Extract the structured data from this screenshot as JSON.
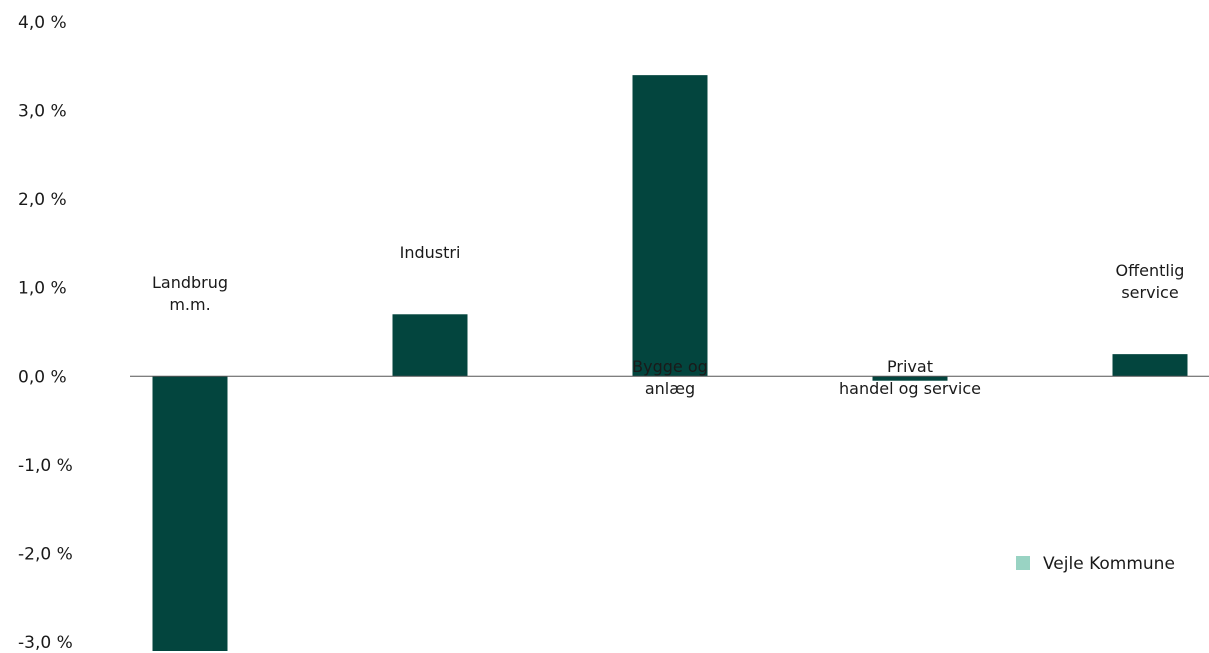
{
  "chart_data": {
    "type": "bar",
    "categories": [
      "Landbrug m.m.",
      "Industri",
      "Bygge og anlæg",
      "Privat handel og service",
      "Offentlig service"
    ],
    "category_label_lines": [
      [
        "Landbrug",
        "m.m."
      ],
      [
        "Industri"
      ],
      [
        "Bygge og",
        "anlæg"
      ],
      [
        "Privat",
        "handel og service"
      ],
      [
        "Offentlig",
        "service"
      ]
    ],
    "series": [
      {
        "name": "Vejle Kommune",
        "values": [
          -3.3,
          0.7,
          3.4,
          -0.05,
          0.25
        ]
      }
    ],
    "ylim": [
      -3.0,
      4.0
    ],
    "y_ticks": [
      4.0,
      3.0,
      2.0,
      1.0,
      0.0,
      -1.0,
      -2.0,
      -3.0
    ],
    "y_tick_labels": [
      "4,0 %",
      "3,0 %",
      "2,0 %",
      "1,0 %",
      "0,0 %",
      "-1,0 %",
      "-2,0 %",
      "-3,0 %"
    ],
    "grid": false,
    "legend_position": "right",
    "colors": {
      "bar": "#03453E",
      "legend_swatch": "#99D3C3",
      "axis": "#555555"
    }
  }
}
